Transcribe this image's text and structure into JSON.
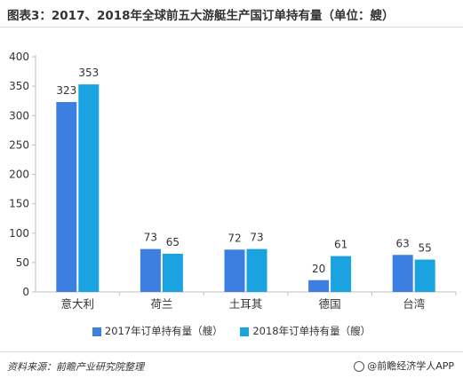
{
  "title": "图表3：2017、2018年全球前五大游艇生产国订单持有量（单位：艘）",
  "colors": {
    "series_2017": "#3d7fe0",
    "series_2018": "#1aa3e0",
    "axis": "#bfbfbf"
  },
  "chart_data": {
    "type": "bar",
    "categories": [
      "意大利",
      "荷兰",
      "土耳其",
      "德国",
      "台湾"
    ],
    "series": [
      {
        "name": "2017年订单持有量（艘）",
        "values": [
          323,
          73,
          72,
          20,
          63
        ]
      },
      {
        "name": "2018年订单持有量（艘）",
        "values": [
          353,
          65,
          73,
          61,
          55
        ]
      }
    ],
    "ylim": [
      0,
      400
    ],
    "yticks": [
      0,
      50,
      100,
      150,
      200,
      250,
      300,
      350,
      400
    ],
    "legend_position": "bottom",
    "grid": false
  },
  "footer": {
    "source": "资料来源：前瞻产业研究院整理",
    "brand": "@前瞻经济学人APP"
  }
}
